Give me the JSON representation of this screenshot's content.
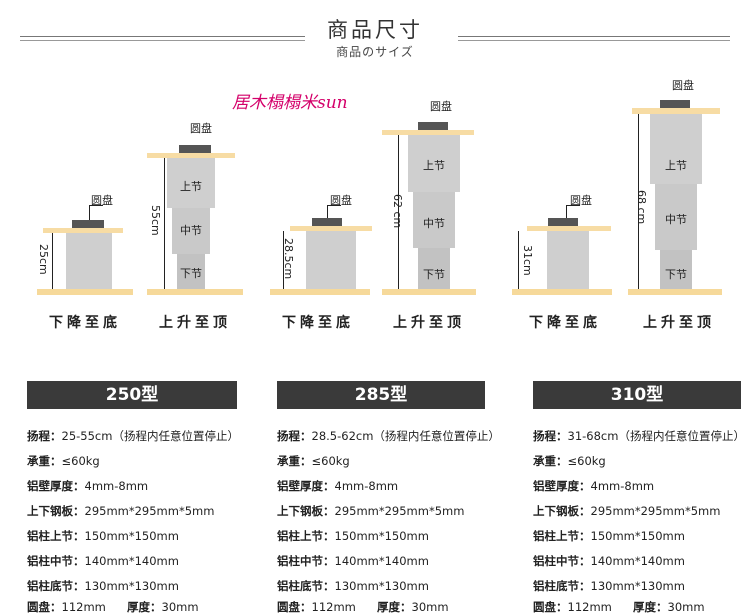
{
  "header": {
    "title": "商品尺寸",
    "subtitle": "商品のサイズ"
  },
  "watermark": "居木榻榻米sun",
  "diagram": {
    "disc_label": "圆盘",
    "segments": {
      "upper": "上节",
      "middle": "中节",
      "lower": "下节"
    },
    "caption_down": "下降至底",
    "caption_up": "上升至顶",
    "models": [
      {
        "min_height": "25cm",
        "max_height": "55cm"
      },
      {
        "min_height": "28.5cm",
        "max_height": "62 cm"
      },
      {
        "min_height": "31cm",
        "max_height": "68 cm"
      }
    ]
  },
  "specs": [
    {
      "model": "250型",
      "range_label": "扬程：",
      "range_value": "25-55cm（扬程内任意位置停止）",
      "load_label": "承重：",
      "load_value": "≤60kg",
      "wall_label": "铝壁厚度：",
      "wall_value": "4mm-8mm",
      "plate_label": "上下钢板：",
      "plate_value": "295mm*295mm*5mm",
      "upper_label": "铝柱上节：",
      "upper_value": "150mm*150mm",
      "middle_label": "铝柱中节：",
      "middle_value": "140mm*140mm",
      "lower_label": "铝柱底节：",
      "lower_value": "130mm*130mm",
      "disc_label": "圆盘：",
      "disc_value": "112mm",
      "thick_label": "厚度：",
      "thick_value": "30mm"
    },
    {
      "model": "285型",
      "range_label": "扬程：",
      "range_value": "28.5-62cm（扬程内任意位置停止）",
      "load_label": "承重：",
      "load_value": "≤60kg",
      "wall_label": "铝壁厚度：",
      "wall_value": "4mm-8mm",
      "plate_label": "上下钢板：",
      "plate_value": "295mm*295mm*5mm",
      "upper_label": "铝柱上节：",
      "upper_value": "150mm*150mm",
      "middle_label": "铝柱中节：",
      "middle_value": "140mm*140mm",
      "lower_label": "铝柱底节：",
      "lower_value": "130mm*130mm",
      "disc_label": "圆盘：",
      "disc_value": "112mm",
      "thick_label": "厚度：",
      "thick_value": "30mm"
    },
    {
      "model": "310型",
      "range_label": "扬程：",
      "range_value": "31-68cm（扬程内任意位置停止）",
      "load_label": "承重：",
      "load_value": "≤60kg",
      "wall_label": "铝壁厚度：",
      "wall_value": "4mm-8mm",
      "plate_label": "上下钢板：",
      "plate_value": "295mm*295mm*5mm",
      "upper_label": "铝柱上节：",
      "upper_value": "150mm*150mm",
      "middle_label": "铝柱中节：",
      "middle_value": "140mm*140mm",
      "lower_label": "铝柱底节：",
      "lower_value": "130mm*130mm",
      "disc_label": "圆盘：",
      "disc_value": "112mm",
      "thick_label": "厚度：",
      "thick_value": "30mm"
    }
  ]
}
